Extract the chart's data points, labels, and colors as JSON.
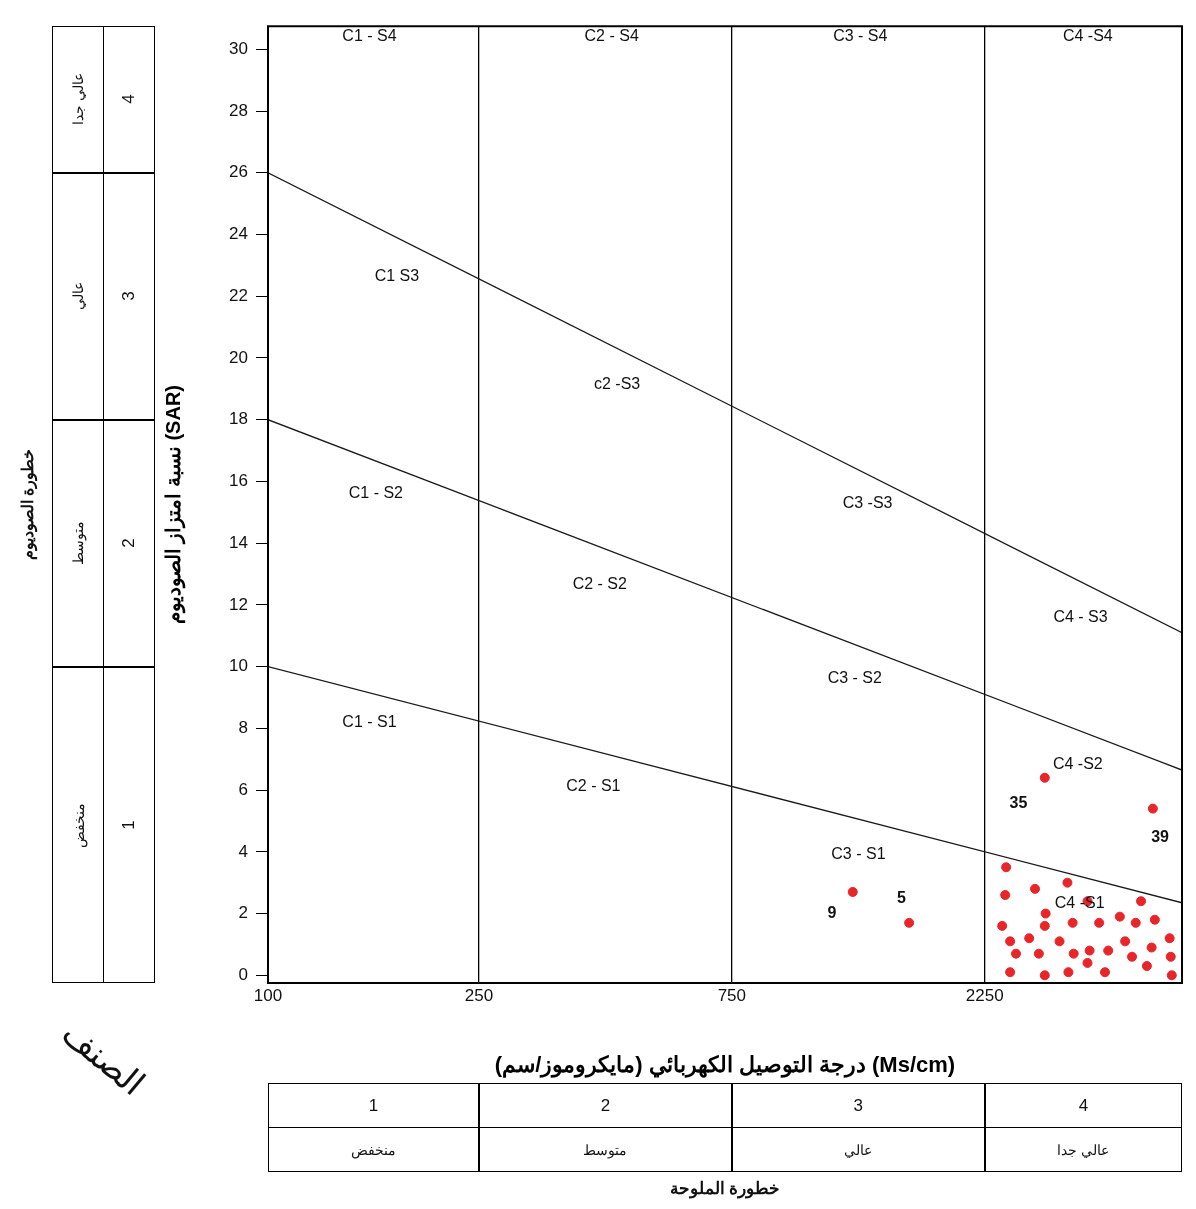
{
  "chart_data": {
    "type": "scatter",
    "xlabel": "درجة التوصيل الكهربائي (مايكروموز/سم) (Ms/cm)",
    "ylabel": "نسبة امتزاز الصوديوم (SAR)",
    "log": "x",
    "xlim": [
      100,
      5300
    ],
    "xticks": [
      100,
      250,
      750,
      2250
    ],
    "ylim": [
      -0.25,
      30.75
    ],
    "yticks": [
      0,
      2,
      4,
      6,
      8,
      10,
      12,
      14,
      16,
      18,
      20,
      22,
      24,
      26,
      28,
      30
    ],
    "grid": "x",
    "legend": false,
    "marker": "circle",
    "series": [
      {
        "type": "line",
        "marker": "none",
        "color": "#1a1a1a",
        "x": [
          100,
          5300
        ],
        "values": [
          10,
          2.35
        ]
      },
      {
        "type": "line",
        "marker": "none",
        "color": "#1a1a1a",
        "x": [
          100,
          5300
        ],
        "values": [
          18,
          6.65
        ]
      },
      {
        "type": "line",
        "marker": "none",
        "color": "#1a1a1a",
        "x": [
          100,
          5300
        ],
        "values": [
          26,
          11.1
        ]
      },
      {
        "type": "scatter",
        "color": "#e8262a",
        "x": [
          1268,
          1620,
          2920,
          4670,
          2469,
          3222,
          2799,
          2459,
          3516,
          4436,
          2931,
          4046,
          4710,
          2427,
          2920,
          3296,
          3698,
          4335,
          2512,
          2729,
          3113,
          4140,
          5023,
          2577,
          2846,
          3311,
          3548,
          3846,
          4266,
          4645,
          5047,
          3516,
          4550,
          2512,
          2920,
          3236,
          3793,
          5070
        ],
        "values": [
          2.7,
          1.7,
          6.4,
          5.4,
          3.5,
          3.0,
          2.8,
          2.6,
          2.4,
          2.4,
          2.0,
          1.9,
          1.8,
          1.6,
          1.6,
          1.7,
          1.7,
          1.7,
          1.1,
          1.2,
          1.1,
          1.1,
          1.2,
          0.7,
          0.7,
          0.7,
          0.8,
          0.8,
          0.6,
          0.9,
          0.6,
          0.4,
          0.3,
          0.1,
          0.0,
          0.1,
          0.1,
          0.0
        ]
      }
    ],
    "annotations": [
      "خطورة الصوديوم",
      "1",
      "منخفض",
      "2",
      "متوسط",
      "3",
      "عالي",
      "4",
      "عالي جدا",
      "الصنف",
      "1",
      "منخفض",
      "2",
      "متوسط",
      "3",
      "عالي",
      "4",
      "عالي جدا",
      "خطورة الملوحة",
      "C1 - S4",
      "C2 - S4",
      "C3 - S4",
      "C4 -S4",
      "C1 S3",
      "c2 -S3",
      "C1 - S2",
      "C3 -S3",
      "C2 - S2",
      "C4 - S3",
      "C3 - S2",
      "C1 - S1",
      "C4 -S2",
      "C2 - S1",
      "C3 - S1",
      "C4 -S1",
      "9",
      "5",
      "35",
      "39"
    ]
  }
}
